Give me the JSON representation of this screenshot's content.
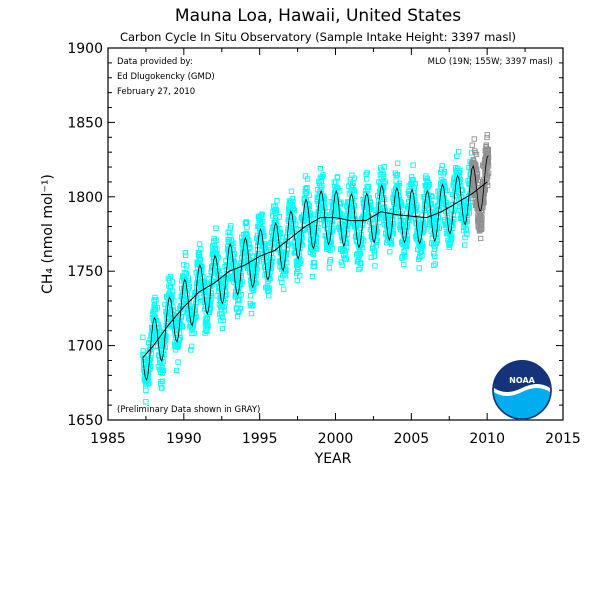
{
  "chart_data": {
    "type": "scatter",
    "title": "Mauna Loa, Hawaii, United States",
    "subtitle": "Carbon Cycle In Situ Observatory (Sample Intake Height: 3397 masl)",
    "xlabel": "YEAR",
    "ylabel": "CH₄ (nmol mol⁻¹)",
    "xlim": [
      1985,
      2015
    ],
    "ylim": [
      1650,
      1900
    ],
    "x_ticks": [
      "1985",
      "1990",
      "1995",
      "2000",
      "2005",
      "2010",
      "2015"
    ],
    "y_ticks": [
      "1650",
      "1700",
      "1750",
      "1800",
      "1850",
      "1900"
    ],
    "grid": false,
    "annotations": {
      "provider_line1": "Data provided by:",
      "provider_line2": "Ed Dlugokencky (GMD)",
      "provider_date": "February 27, 2010",
      "station_info": "MLO (19N; 155W; 3397 masl)",
      "preliminary_note": "(Preliminary Data shown in GRAY)",
      "logo_text": "NOAA"
    },
    "series": [
      {
        "type": "scatter",
        "color": "#00ffff",
        "x_range": [
          1987.3,
          2009.0
        ],
        "trend_x": [
          1987.3,
          1988,
          1989,
          1990,
          1991,
          1992,
          1993,
          1994,
          1995,
          1996,
          1997,
          1998,
          1999,
          2000,
          2001,
          2002,
          2003,
          2004,
          2005,
          2006,
          2007,
          2008,
          2009
        ],
        "trend_y": [
          1692,
          1700,
          1714,
          1726,
          1736,
          1742,
          1750,
          1754,
          1760,
          1764,
          1772,
          1780,
          1786,
          1786,
          1784,
          1784,
          1790,
          1788,
          1787,
          1786,
          1790,
          1796,
          1802
        ],
        "seasonal_amplitude": 18,
        "spread": 16
      },
      {
        "type": "scatter",
        "color": "#909090",
        "x_range": [
          2009.0,
          2010.1
        ],
        "trend_x": [
          2009.0,
          2009.5,
          2010.1
        ],
        "trend_y": [
          1802,
          1808,
          1810
        ],
        "seasonal_amplitude": 18,
        "spread": 18
      }
    ],
    "trend_line": {
      "color": "#000000",
      "x": [
        1987.3,
        1988,
        1989,
        1990,
        1991,
        1992,
        1993,
        1994,
        1995,
        1996,
        1997,
        1998,
        1999,
        2000,
        2001,
        2002,
        2003,
        2004,
        2005,
        2006,
        2007,
        2008,
        2009,
        2010
      ],
      "y": [
        1692,
        1700,
        1714,
        1726,
        1736,
        1742,
        1750,
        1754,
        1760,
        1764,
        1772,
        1780,
        1786,
        1786,
        1784,
        1784,
        1790,
        1788,
        1787,
        1786,
        1790,
        1796,
        1802,
        1810
      ]
    },
    "monthly_line_color": "#000000"
  }
}
